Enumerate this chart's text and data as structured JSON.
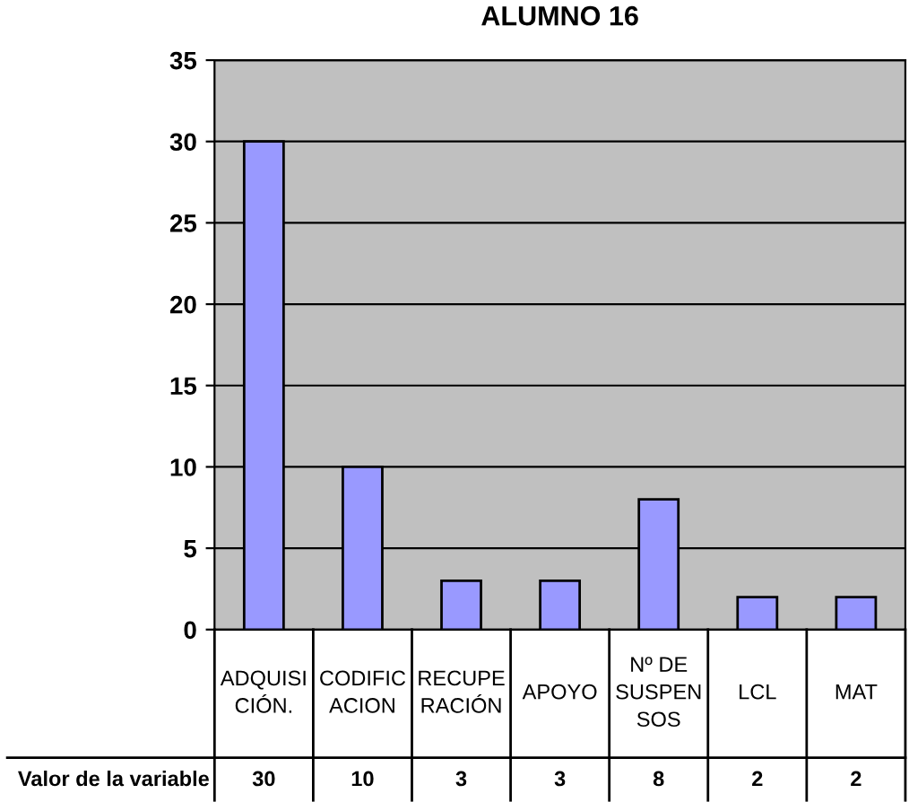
{
  "chart_data": {
    "type": "bar",
    "title": "ALUMNO 16",
    "categories": [
      "ADQUISI\nCIÓN.",
      "CODIFIC\nACION",
      "RECUPE\nRACIÓN",
      "APOYO",
      "Nº DE\nSUSPEN\nSOS",
      "LCL",
      "MAT"
    ],
    "series": [
      {
        "name": "Valor de la variable",
        "color": "#9999ff",
        "values": [
          30,
          10,
          3,
          3,
          8,
          2,
          2
        ]
      }
    ],
    "ylim": [
      0,
      35
    ],
    "yticks": [
      0,
      5,
      10,
      15,
      20,
      25,
      30,
      35
    ],
    "grid": "y",
    "data_labels": true,
    "legend": false
  }
}
